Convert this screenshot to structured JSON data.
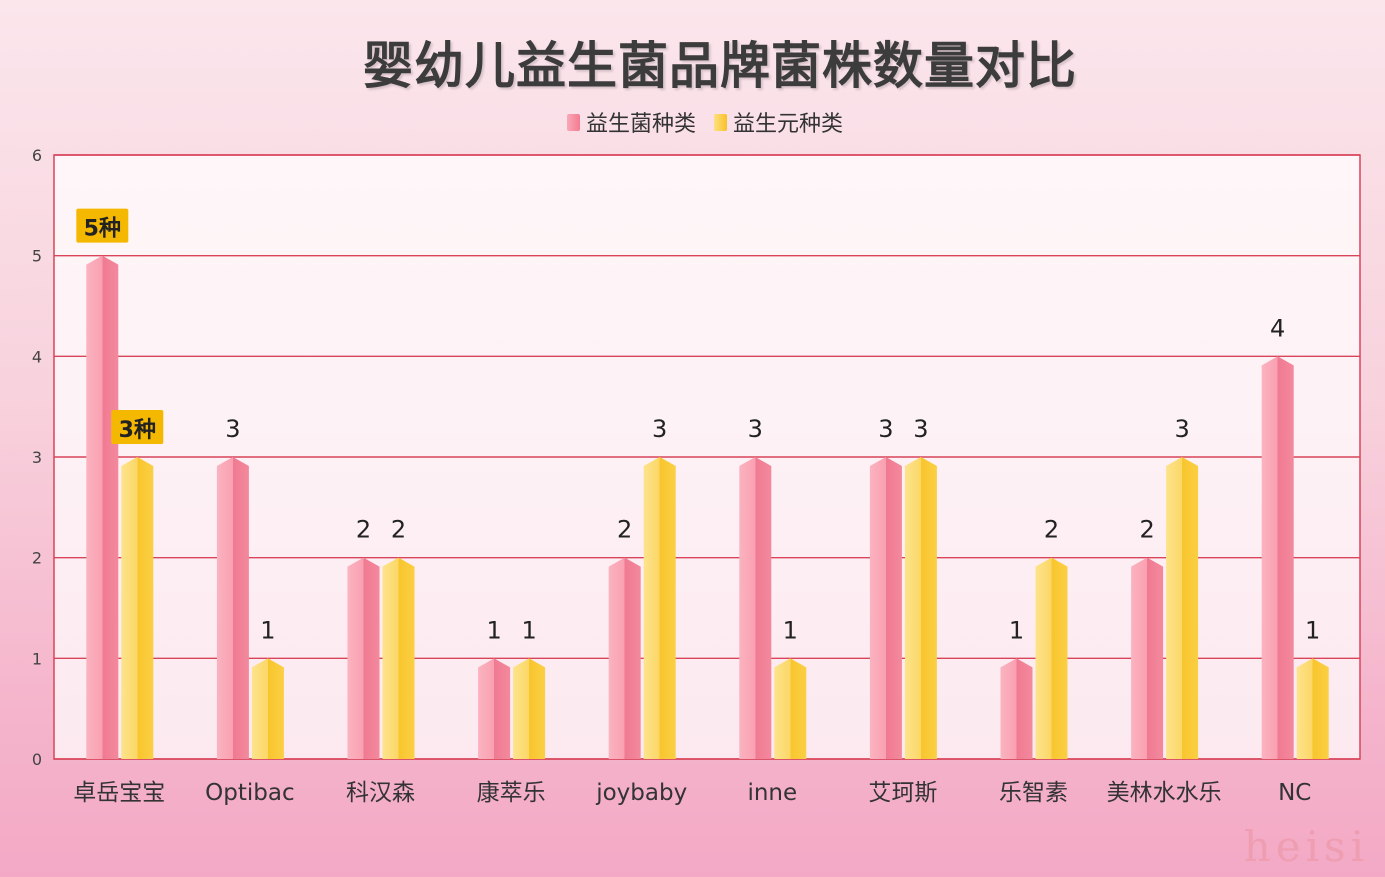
{
  "chart_data": {
    "type": "bar",
    "title": "婴幼儿益生菌品牌菌株数量对比",
    "categories": [
      "卓岳宝宝",
      "Optibac",
      "科汉森",
      "康萃乐",
      "joybaby",
      "inne",
      "艾珂斯",
      "乐智素",
      "美林水水乐",
      "NC"
    ],
    "series": [
      {
        "name": "益生菌种类",
        "values": [
          5,
          3,
          2,
          1,
          2,
          3,
          3,
          1,
          2,
          4
        ],
        "color": "#f4849a"
      },
      {
        "name": "益生元种类",
        "values": [
          3,
          1,
          2,
          1,
          3,
          1,
          3,
          2,
          3,
          1
        ],
        "color": "#fcc93a"
      }
    ],
    "ylim": [
      0,
      6
    ],
    "yticks": [
      0,
      1,
      2,
      3,
      4,
      5,
      6
    ],
    "grid": true,
    "legend_position": "top",
    "data_labels": [
      [
        "5种",
        "3",
        "2",
        "1",
        "2",
        "3",
        "3",
        "1",
        "2",
        "4"
      ],
      [
        "3种",
        "1",
        "2",
        "1",
        "3",
        "1",
        "3",
        "2",
        "3",
        "1"
      ]
    ],
    "highlighted_labels": [
      "5种",
      "3种"
    ],
    "highlight_color": "#f5b800",
    "gridline_color": "#d9445a"
  },
  "watermark": "heisi"
}
